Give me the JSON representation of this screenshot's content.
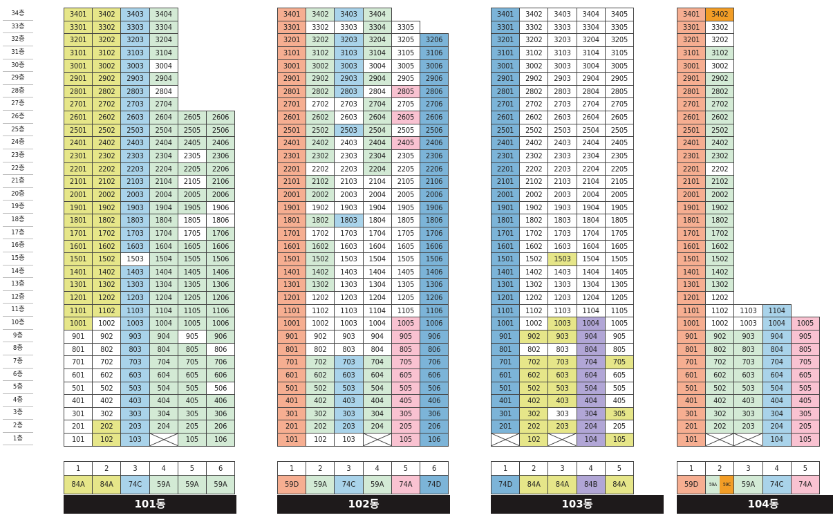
{
  "floors": [
    "34층",
    "33층",
    "32층",
    "31층",
    "30층",
    "29층",
    "28층",
    "27층",
    "26층",
    "25층",
    "24층",
    "23층",
    "22층",
    "21층",
    "20층",
    "19층",
    "18층",
    "17층",
    "16층",
    "15층",
    "14층",
    "13층",
    "12층",
    "11층",
    "10층",
    "9층",
    "8층",
    "7층",
    "6층",
    "5층",
    "4층",
    "3층",
    "2층",
    "1층"
  ],
  "colors": {
    "G": "#d3ead5",
    "Y": "#e6e689",
    "B": "#a9d3ea",
    "W": "#ffffff",
    "O": "#f6ae91",
    "K": "#f9c2d1",
    "D": "#7cb4d8",
    "P": "#b1a6d6",
    "A": "#f29d26"
  },
  "buildings": [
    {
      "name": "101동",
      "lines": [
        {
          "line": "1",
          "type": "84A",
          "color": "Y",
          "top": 34,
          "yb": [
            10
          ],
          "yf": 1,
          "wh": [
            1,
            2,
            3,
            4,
            5,
            6,
            7,
            8,
            9
          ],
          "kk": []
        },
        {
          "line": "2",
          "type": "84A",
          "color": "Y",
          "top": 34,
          "yb": [
            15
          ],
          "yf": 1,
          "wh": [
            3,
            4,
            5,
            6,
            7,
            8,
            9,
            10
          ],
          "kk": []
        },
        {
          "line": "3",
          "type": "74C",
          "color": "B",
          "top": 34,
          "wh": [
            15
          ],
          "kk": []
        },
        {
          "line": "4",
          "type": "59A",
          "color": "G",
          "top": 34,
          "wh": [
            30,
            28
          ],
          "kk": [],
          "bl": [
            1
          ]
        },
        {
          "line": "5",
          "type": "59A",
          "color": "G",
          "top": 26,
          "wh": [
            23,
            21,
            18,
            17,
            9
          ],
          "kk": []
        },
        {
          "line": "6",
          "type": "59A",
          "color": "G",
          "top": 26,
          "wh": [
            19,
            18,
            8,
            5
          ],
          "kk": []
        }
      ]
    },
    {
      "name": "102동",
      "lines": [
        {
          "line": "1",
          "type": "59D",
          "color": "O",
          "top": 34,
          "wh": [],
          "kk": []
        },
        {
          "line": "2",
          "type": "59A",
          "color": "G",
          "top": 34,
          "wh": [
            33,
            27,
            22,
            19,
            17,
            12,
            11,
            10,
            9,
            8,
            1
          ],
          "kk": []
        },
        {
          "line": "3",
          "type": "74C",
          "color": "B",
          "top": 34,
          "wh": [
            33,
            27,
            26,
            24,
            23,
            22,
            21,
            20,
            19,
            17,
            16,
            15,
            14,
            13,
            12,
            11,
            10,
            9,
            8,
            1
          ],
          "kk": []
        },
        {
          "line": "4",
          "type": "59A",
          "color": "G",
          "top": 34,
          "wh": [
            30,
            28,
            21,
            20,
            19,
            18,
            17,
            16,
            15,
            14,
            13,
            12,
            11,
            10,
            9,
            8
          ],
          "kk": [],
          "bl": [
            1
          ]
        },
        {
          "line": "5",
          "type": "74A",
          "color": "K",
          "top": 33,
          "wh": [
            33,
            32,
            31,
            30,
            29,
            27,
            25,
            23,
            22,
            21,
            20,
            19,
            18,
            17,
            16,
            15,
            14,
            13,
            12,
            11
          ],
          "kk": [
            28,
            26,
            24
          ]
        },
        {
          "line": "6",
          "type": "74D",
          "color": "D",
          "top": 32,
          "wh": [],
          "kk": []
        }
      ]
    },
    {
      "name": "103동",
      "lines": [
        {
          "line": "1",
          "type": "74D",
          "color": "D",
          "top": 34,
          "wh": [],
          "kk": [],
          "bl": [
            1
          ]
        },
        {
          "line": "2",
          "type": "84A",
          "color": "Y",
          "top": 34,
          "yb": [],
          "yf": 0,
          "wh": [
            34,
            33,
            32,
            31,
            30,
            29,
            28,
            27,
            26,
            25,
            24,
            23,
            22,
            21,
            20,
            19,
            18,
            17,
            16,
            15,
            14,
            13,
            12,
            11,
            10,
            8
          ],
          "kk": []
        },
        {
          "line": "3",
          "type": "84A",
          "color": "Y",
          "top": 34,
          "wh": [
            34,
            33,
            32,
            31,
            30,
            29,
            28,
            27,
            26,
            25,
            24,
            23,
            22,
            21,
            20,
            19,
            18,
            17,
            16,
            14,
            13,
            12,
            11,
            8,
            3
          ],
          "kk": [],
          "bl": [
            1
          ]
        },
        {
          "line": "4",
          "type": "84B",
          "color": "P",
          "top": 34,
          "wh": [
            34,
            33,
            32,
            31,
            30,
            29,
            28,
            27,
            26,
            25,
            24,
            23,
            22,
            21,
            20,
            19,
            18,
            17,
            16,
            15,
            14,
            13,
            12,
            11
          ],
          "kk": []
        },
        {
          "line": "5",
          "type": "84A",
          "color": "Y",
          "top": 34,
          "wh": [
            34,
            33,
            32,
            31,
            30,
            29,
            28,
            27,
            26,
            25,
            24,
            23,
            22,
            21,
            20,
            19,
            18,
            17,
            16,
            15,
            14,
            13,
            12,
            11,
            10,
            9,
            8,
            6,
            5,
            4,
            2
          ],
          "kk": []
        }
      ]
    },
    {
      "name": "104동",
      "lines": [
        {
          "line": "1",
          "type": "59D",
          "color": "O",
          "top": 34,
          "wh": [],
          "kk": []
        },
        {
          "line": "2",
          "type": "59A",
          "color": "G",
          "top": 34,
          "wh": [
            33,
            32,
            30,
            22,
            12,
            11,
            10
          ],
          "kk": [],
          "bl": [
            1
          ],
          "or": [
            34
          ]
        },
        {
          "line": "3",
          "type": "59A",
          "color": "G",
          "top": 11,
          "wh": [
            11,
            10
          ],
          "kk": [],
          "bl": [
            1
          ]
        },
        {
          "line": "4",
          "type": "74C",
          "color": "B",
          "top": 11,
          "wh": [],
          "kk": []
        },
        {
          "line": "5",
          "type": "74A",
          "color": "K",
          "top": 10,
          "wh": [],
          "kk": []
        }
      ]
    }
  ],
  "legend104_line2_types": [
    "59A",
    "59C"
  ]
}
